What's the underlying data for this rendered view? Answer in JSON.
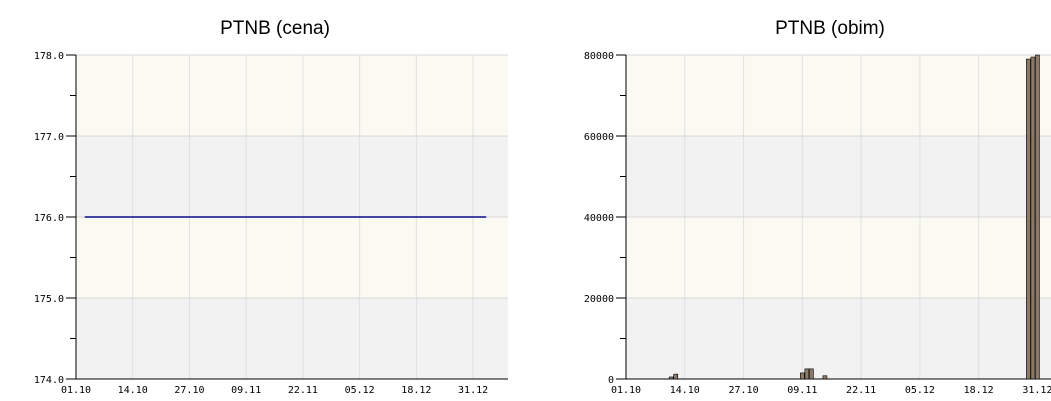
{
  "chart_data": [
    {
      "type": "line",
      "title": "PTNB (cena)",
      "x_ticks": [
        "01.10",
        "14.10",
        "27.10",
        "09.11",
        "22.11",
        "05.12",
        "18.12",
        "31.12"
      ],
      "y_ticks": [
        "178.0",
        "177.0",
        "176.0",
        "175.0",
        "174.0"
      ],
      "ylim": [
        174,
        178
      ],
      "xlim": [
        "01.10",
        "08.01"
      ],
      "series": [
        {
          "color": "#0a0a8c",
          "points": [
            {
              "x": "03.10",
              "y": 176.0
            },
            {
              "x": "03.01",
              "y": 176.0
            }
          ]
        }
      ],
      "background_bands": [
        "#fafaf2",
        "#f2f2f2"
      ],
      "grid": true
    },
    {
      "type": "bar",
      "title": "PTNB (obim)",
      "x_ticks": [
        "01.10",
        "14.10",
        "27.10",
        "09.11",
        "22.11",
        "05.12",
        "18.12",
        "31.12"
      ],
      "y_ticks": [
        "80000",
        "60000",
        "40000",
        "20000",
        "0"
      ],
      "ylim": [
        0,
        80000
      ],
      "xlim": [
        "01.10",
        "03.01"
      ],
      "bars": [
        {
          "x": "11.10",
          "value": 500
        },
        {
          "x": "12.10",
          "value": 1200
        },
        {
          "x": "09.11",
          "value": 1500
        },
        {
          "x": "10.11",
          "value": 2500
        },
        {
          "x": "11.11",
          "value": 2500
        },
        {
          "x": "14.11",
          "value": 800
        },
        {
          "x": "29.12",
          "value": 79000
        },
        {
          "x": "30.12",
          "value": 79500
        },
        {
          "x": "31.12",
          "value": 80000
        }
      ],
      "bar_color": "#8c7a68",
      "bar_outline": "#000000",
      "background_bands": [
        "#fafaf2",
        "#f2f2f2"
      ],
      "grid": true
    }
  ]
}
